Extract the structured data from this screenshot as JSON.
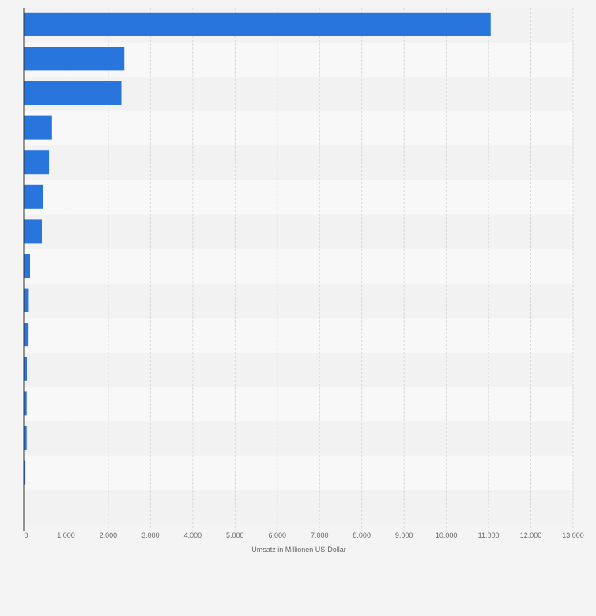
{
  "chart_data": {
    "type": "bar",
    "orientation": "horizontal",
    "categories": [
      "",
      "",
      "",
      "",
      "",
      "",
      "",
      "",
      "",
      "",
      "",
      "",
      "",
      ""
    ],
    "values": [
      11050,
      2380,
      2310,
      670,
      600,
      450,
      430,
      150,
      120,
      115,
      75,
      70,
      70,
      40
    ],
    "xlabel": "Umsatz in Millionen US-Dollar",
    "xlim": [
      0,
      13000
    ],
    "x_ticks": [
      0,
      1000,
      2000,
      3000,
      4000,
      5000,
      6000,
      7000,
      8000,
      9000,
      10000,
      11000,
      12000,
      13000
    ],
    "x_tick_labels": [
      "0",
      "1.000",
      "2.000",
      "3.000",
      "4.000",
      "5.000",
      "6.000",
      "7.000",
      "8.000",
      "9.000",
      "10.000",
      "11.000",
      "12.000",
      "13.000"
    ],
    "grid": true,
    "bar_color": "#2876dd",
    "legend": "none"
  }
}
